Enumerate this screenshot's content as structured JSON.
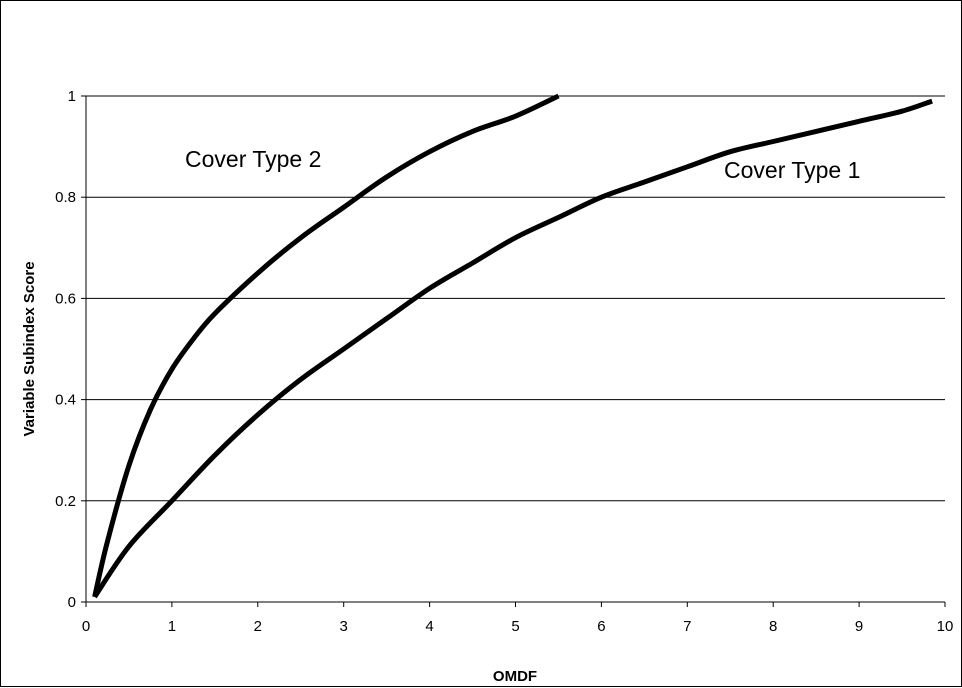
{
  "chart_data": {
    "type": "line",
    "title": "",
    "xlabel": "OMDF",
    "ylabel": "Variable Subindex Score",
    "xlim": [
      0,
      10
    ],
    "ylim": [
      0,
      1
    ],
    "x_ticks": [
      "0",
      "1",
      "2",
      "3",
      "4",
      "5",
      "6",
      "7",
      "8",
      "9",
      "10"
    ],
    "y_ticks": [
      "0",
      "0.2",
      "0.4",
      "0.6",
      "0.8",
      "1"
    ],
    "grid": "horizontal",
    "series": [
      {
        "name": "Cover Type 2",
        "color": "#000000",
        "x": [
          0.1,
          0.25,
          0.5,
          0.75,
          1.0,
          1.25,
          1.5,
          2.0,
          2.5,
          3.0,
          3.5,
          4.0,
          4.5,
          5.0,
          5.5
        ],
        "y": [
          0.01,
          0.12,
          0.27,
          0.38,
          0.46,
          0.52,
          0.57,
          0.65,
          0.72,
          0.78,
          0.84,
          0.89,
          0.93,
          0.96,
          1.0
        ]
      },
      {
        "name": "Cover Type 1",
        "color": "#000000",
        "x": [
          0.1,
          0.5,
          1.0,
          1.5,
          2.0,
          2.5,
          3.0,
          3.5,
          4.0,
          4.5,
          5.0,
          5.5,
          6.0,
          6.5,
          7.0,
          7.5,
          8.0,
          8.5,
          9.0,
          9.5,
          9.85
        ],
        "y": [
          0.01,
          0.11,
          0.2,
          0.29,
          0.37,
          0.44,
          0.5,
          0.56,
          0.62,
          0.67,
          0.72,
          0.76,
          0.8,
          0.83,
          0.86,
          0.89,
          0.91,
          0.93,
          0.95,
          0.97,
          0.99
        ]
      }
    ]
  }
}
